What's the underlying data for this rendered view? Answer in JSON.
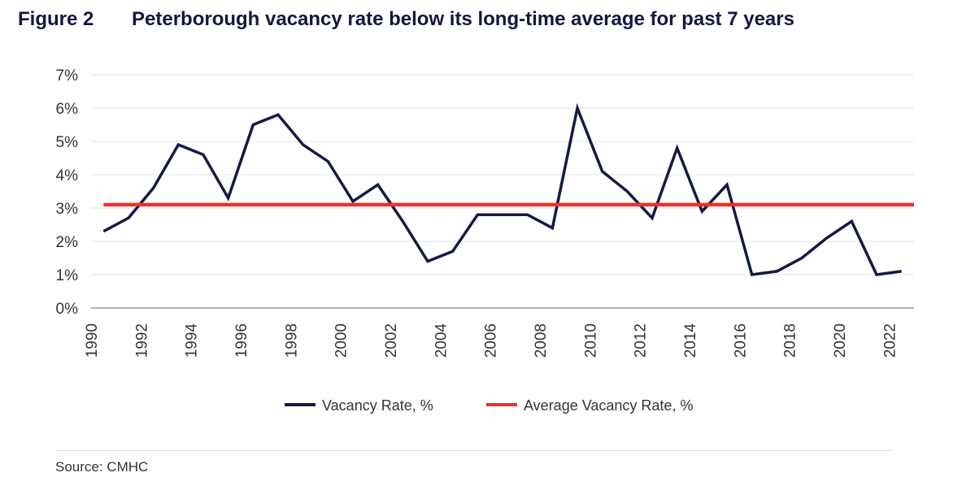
{
  "header": {
    "figure_label": "Figure 2",
    "title": "Peterborough vacancy rate below its long-time average for past 7 years"
  },
  "source": "Source: CMHC",
  "colors": {
    "vacancy": "#141a45",
    "average": "#e8332e",
    "grid": "#e6e6e6",
    "axis": "#999999"
  },
  "chart_data": {
    "type": "line",
    "title": "Peterborough vacancy rate below its long-time average for past 7 years",
    "xlabel": "",
    "ylabel": "",
    "xlim": [
      1990,
      2023
    ],
    "ylim": [
      0,
      7
    ],
    "y_ticks": [
      "0%",
      "1%",
      "2%",
      "3%",
      "4%",
      "5%",
      "6%",
      "7%"
    ],
    "x_ticks": [
      "1990",
      "1992",
      "1994",
      "1996",
      "1998",
      "2000",
      "2002",
      "2004",
      "2006",
      "2008",
      "2010",
      "2012",
      "2014",
      "2016",
      "2018",
      "2020",
      "2022"
    ],
    "grid": true,
    "legend_position": "bottom-center",
    "x": [
      1990.5,
      1991.5,
      1992.5,
      1993.5,
      1994.5,
      1995.5,
      1996.5,
      1997.5,
      1998.5,
      1999.5,
      2000.5,
      2001.5,
      2002.5,
      2003.5,
      2004.5,
      2005.5,
      2006.5,
      2007.5,
      2008.5,
      2009.5,
      2010.5,
      2011.5,
      2012.5,
      2013.5,
      2014.5,
      2015.5,
      2016.5,
      2017.5,
      2018.5,
      2019.5,
      2020.5,
      2021.5,
      2022.5
    ],
    "series": [
      {
        "name": "Vacancy Rate, %",
        "values": [
          2.3,
          2.7,
          3.6,
          4.9,
          4.6,
          3.3,
          5.5,
          5.8,
          4.9,
          4.4,
          3.2,
          3.7,
          2.6,
          1.4,
          1.7,
          2.8,
          2.8,
          2.8,
          2.4,
          6.0,
          4.1,
          3.5,
          2.7,
          4.8,
          2.9,
          3.7,
          1.0,
          1.1,
          1.5,
          2.1,
          2.6,
          1.0,
          1.1
        ]
      },
      {
        "name": "Average Vacancy Rate, %",
        "values": [
          3.1,
          3.1,
          3.1,
          3.1,
          3.1,
          3.1,
          3.1,
          3.1,
          3.1,
          3.1,
          3.1,
          3.1,
          3.1,
          3.1,
          3.1,
          3.1,
          3.1,
          3.1,
          3.1,
          3.1,
          3.1,
          3.1,
          3.1,
          3.1,
          3.1,
          3.1,
          3.1,
          3.1,
          3.1,
          3.1,
          3.1,
          3.1,
          3.1
        ]
      }
    ]
  }
}
